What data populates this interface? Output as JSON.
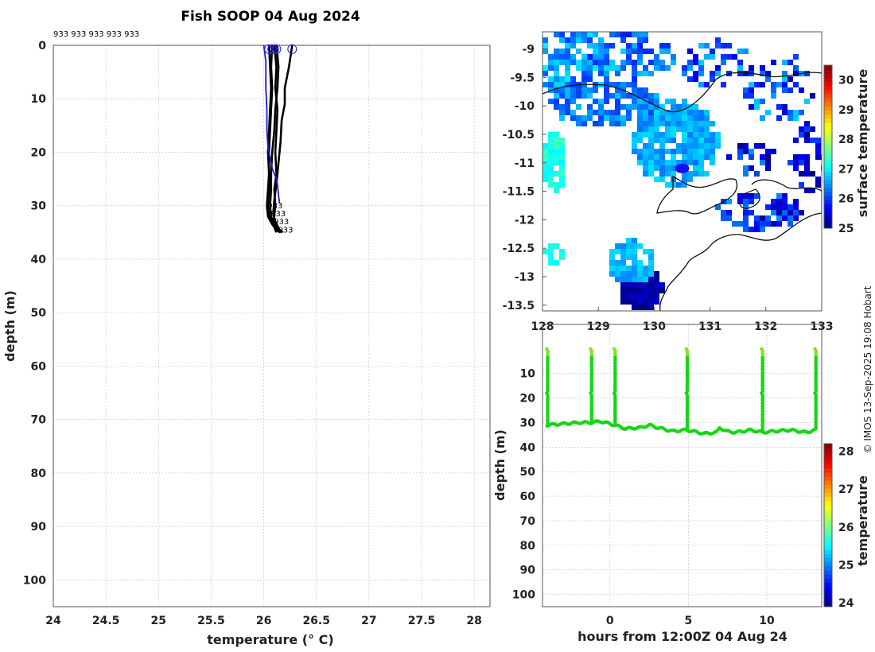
{
  "chart_data": [
    {
      "type": "line",
      "title": "Fish SOOP 04 Aug 2024",
      "xlabel": "temperature (° C)",
      "ylabel": "depth (m)",
      "xlim": [
        24,
        28.15
      ],
      "ylim": [
        105,
        0
      ],
      "xticks": [
        "24",
        "24.5",
        "25",
        "25.5",
        "26",
        "26.5",
        "27",
        "27.5",
        "28"
      ],
      "yticks": [
        "0",
        "10",
        "20",
        "30",
        "40",
        "50",
        "60",
        "70",
        "80",
        "90",
        "100"
      ],
      "grid": true,
      "top_annotation": "933 933 933 933 933",
      "profile_label": "933",
      "series": [
        {
          "name": "profile-blue",
          "color": "#1a1adb",
          "x": [
            26.0,
            26.02,
            26.02,
            26.03,
            26.03,
            26.04,
            26.06,
            26.08,
            26.1,
            26.12,
            26.13,
            26.14,
            26.15
          ],
          "y": [
            0,
            3,
            8,
            12,
            16,
            19,
            21,
            23,
            24,
            25,
            26,
            28,
            29.5
          ]
        },
        {
          "name": "profile-1",
          "color": "#000000",
          "x": [
            26.1,
            26.12,
            26.11,
            26.13,
            26.12,
            26.11,
            26.12,
            26.1,
            26.11,
            26.1,
            26.09,
            26.11,
            26.12
          ],
          "y": [
            0,
            4,
            8,
            12,
            16,
            20,
            24,
            27,
            30,
            32,
            33.5,
            34.5,
            35
          ]
        },
        {
          "name": "profile-2",
          "color": "#000000",
          "x": [
            26.08,
            26.07,
            26.08,
            26.07,
            26.06,
            26.05,
            26.05,
            26.04,
            26.03,
            26.04,
            26.08,
            26.12,
            26.15
          ],
          "y": [
            0,
            4,
            8,
            12,
            16,
            20,
            24,
            27,
            30,
            32,
            33.5,
            34.5,
            35
          ]
        },
        {
          "name": "profile-3",
          "color": "#000000",
          "x": [
            26.12,
            26.14,
            26.13,
            26.11,
            26.1,
            26.08,
            26.07,
            26.07,
            26.06,
            26.07,
            26.1,
            26.14,
            26.17
          ],
          "y": [
            0,
            4,
            8,
            12,
            16,
            20,
            24,
            27,
            30,
            32,
            33.5,
            34.5,
            35
          ]
        },
        {
          "name": "profile-4",
          "color": "#000000",
          "x": [
            26.27,
            26.24,
            26.2,
            26.2,
            26.17,
            26.16,
            26.14,
            26.12,
            26.1,
            26.09,
            26.11,
            26.15,
            26.18
          ],
          "y": [
            0,
            4,
            8,
            11,
            14,
            18,
            22,
            26,
            29,
            31.5,
            33,
            34.5,
            35
          ]
        },
        {
          "name": "profile-5",
          "color": "#000000",
          "x": [
            26.05,
            26.06,
            26.07,
            26.06,
            26.05,
            26.04,
            26.05,
            26.05,
            26.04,
            26.05,
            26.09,
            26.13,
            26.16
          ],
          "y": [
            0,
            4,
            8,
            12,
            16,
            20,
            24,
            27,
            30,
            32,
            33.5,
            34.5,
            35
          ]
        }
      ],
      "surface_markers_x": [
        26.05,
        26.08,
        26.1,
        26.12,
        26.27
      ]
    },
    {
      "type": "heatmap",
      "name": "surface temperature map",
      "colorbar_label": "surface temperature",
      "colorbar_range": [
        25,
        30.5
      ],
      "colorbar_ticks": [
        "25",
        "26",
        "27",
        "28",
        "29",
        "30"
      ],
      "xlim": [
        128,
        133
      ],
      "ylim": [
        -13.6,
        -8.7
      ],
      "xticks": [
        "128",
        "129",
        "130",
        "131",
        "132",
        "133"
      ],
      "yticks": [
        "-9",
        "-9.5",
        "-10",
        "-10.5",
        "-11",
        "-11.5",
        "-12",
        "-12.5",
        "-13",
        "-13.5"
      ],
      "track_point": [
        130.5,
        -11.1
      ]
    },
    {
      "type": "scatter",
      "name": "depth vs hours",
      "xlabel": "hours from 12:00Z 04 Aug 24",
      "ylabel": "depth (m)",
      "xlim": [
        -4.3,
        13.5
      ],
      "ylim": [
        105,
        -10
      ],
      "xticks": [
        "0",
        "5",
        "10"
      ],
      "yticks": [
        "10",
        "20",
        "30",
        "40",
        "50",
        "60",
        "70",
        "80",
        "90",
        "100"
      ],
      "colorbar_label": "temperature",
      "colorbar_range": [
        23.9,
        28.2
      ],
      "colorbar_ticks": [
        "24",
        "25",
        "26",
        "27",
        "28"
      ],
      "marker_color": "#16d616",
      "cast_hours": [
        -4,
        -1.2,
        0.3,
        4.9,
        9.7,
        13.1
      ],
      "bottom_depth": {
        "hours": [
          -4,
          -3,
          -2,
          -1.2,
          -0.6,
          0.3,
          1,
          2,
          2.5,
          3,
          4,
          4.9,
          6,
          6.8,
          7,
          7.4,
          8,
          9,
          9.7,
          10.5,
          11.5,
          12.5,
          13.1
        ],
        "depth": [
          31,
          30.5,
          30,
          30,
          29.5,
          31,
          32.5,
          32,
          31,
          32,
          33.5,
          33,
          34.5,
          34,
          32,
          33.5,
          34,
          33,
          34,
          33.5,
          33,
          34,
          33
        ]
      }
    }
  ],
  "watermark": "© IMOS 13-Sep-2025 19:08 Hobart"
}
